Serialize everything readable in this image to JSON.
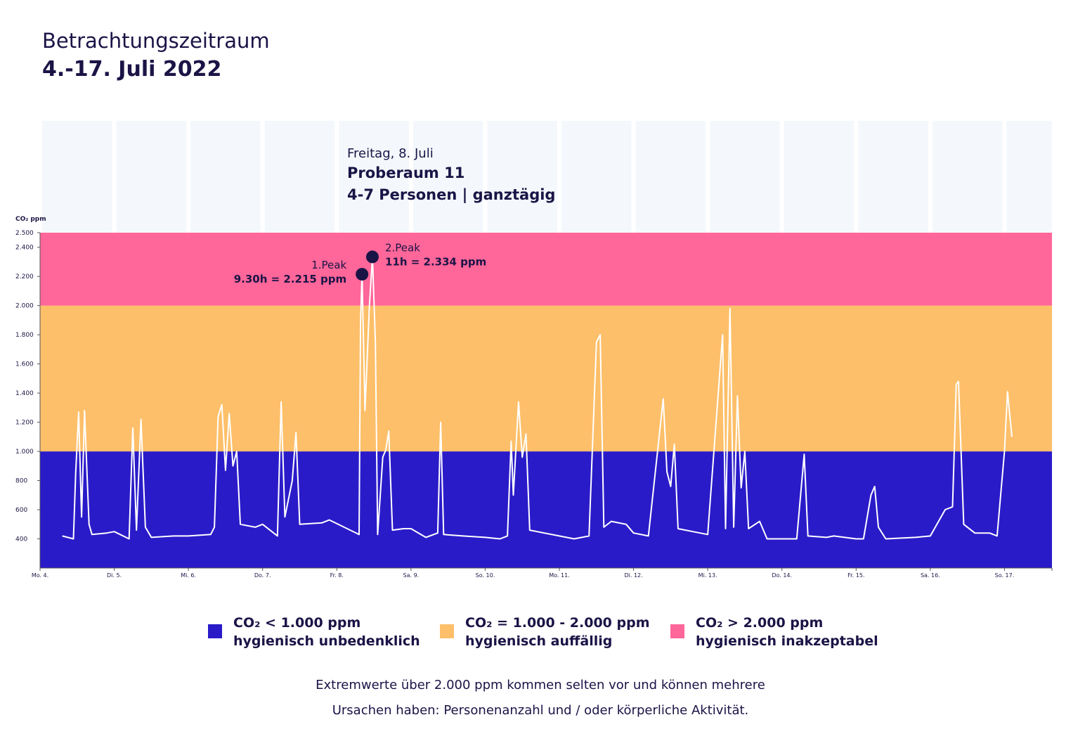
{
  "title": "Betrachtungszeitraum",
  "subtitle": "4.-17. Juli 2022",
  "chart_data": {
    "type": "line",
    "y_axis_label": "CO₂ ppm",
    "line_color": "#ffffff",
    "callout": {
      "date": "Freitag, 8. Juli",
      "room": "Proberaum 11",
      "info": "4-7 Personen | ganztägig"
    },
    "peaks": [
      {
        "label": "1.Peak",
        "text": "9.30h = 2.215 ppm",
        "x": 4.34,
        "y": 2215
      },
      {
        "label": "2.Peak",
        "text": "11h = 2.334 ppm",
        "x": 4.48,
        "y": 2334
      }
    ],
    "xlim": [
      0,
      13.64
    ],
    "xticks": [
      {
        "value": 0,
        "label": "Mo. 4."
      },
      {
        "value": 1,
        "label": "Di. 5."
      },
      {
        "value": 2,
        "label": "Mi. 6."
      },
      {
        "value": 3,
        "label": "Do. 7."
      },
      {
        "value": 4,
        "label": "Fr. 8."
      },
      {
        "value": 5,
        "label": "Sa. 9."
      },
      {
        "value": 6,
        "label": "So. 10."
      },
      {
        "value": 7,
        "label": "Mo. 11."
      },
      {
        "value": 8,
        "label": "Di. 12."
      },
      {
        "value": 9,
        "label": "Mi. 13."
      },
      {
        "value": 10,
        "label": "Do. 14."
      },
      {
        "value": 11,
        "label": "Fr. 15."
      },
      {
        "value": 12,
        "label": "Sa. 16."
      },
      {
        "value": 13,
        "label": "So. 17."
      }
    ],
    "ylim": [
      200,
      2500
    ],
    "yticks": [
      {
        "value": 400,
        "label": "400"
      },
      {
        "value": 600,
        "label": "600"
      },
      {
        "value": 800,
        "label": "800"
      },
      {
        "value": 1000,
        "label": "1.000"
      },
      {
        "value": 1200,
        "label": "1.200"
      },
      {
        "value": 1400,
        "label": "1.400"
      },
      {
        "value": 1600,
        "label": "1.600"
      },
      {
        "value": 1800,
        "label": "1.800"
      },
      {
        "value": 2000,
        "label": "2.000"
      },
      {
        "value": 2200,
        "label": "2.200"
      },
      {
        "value": 2400,
        "label": "2.400"
      },
      {
        "value": 2500,
        "label": "2.500"
      }
    ],
    "bands": [
      {
        "name": "CO₂ < 1.000 ppm",
        "desc": "hygienisch unbedenklich",
        "color": "#2a1bc9",
        "to": 1000
      },
      {
        "name": "CO₂ = 1.000 - 2.000 ppm",
        "desc": "hygienisch auffällig",
        "color": "#fdbf69",
        "from": 1000,
        "to": 2000
      },
      {
        "name": "CO₂ > 2.000 ppm",
        "desc": "hygienisch inakzeptabel",
        "color": "#ff6699",
        "from": 2000
      }
    ],
    "x": [
      0.3,
      0.45,
      0.48,
      0.52,
      0.56,
      0.6,
      0.66,
      0.7,
      0.9,
      1.0,
      1.2,
      1.25,
      1.3,
      1.36,
      1.42,
      1.5,
      1.8,
      2.0,
      2.3,
      2.35,
      2.4,
      2.45,
      2.5,
      2.55,
      2.6,
      2.65,
      2.7,
      2.9,
      3.0,
      3.2,
      3.25,
      3.3,
      3.4,
      3.45,
      3.5,
      3.8,
      3.9,
      4.3,
      4.32,
      4.34,
      4.38,
      4.44,
      4.48,
      4.52,
      4.55,
      4.62,
      4.66,
      4.7,
      4.75,
      4.9,
      5.0,
      5.2,
      5.36,
      5.4,
      5.44,
      5.7,
      6.0,
      6.2,
      6.3,
      6.35,
      6.38,
      6.45,
      6.5,
      6.55,
      6.6,
      7.0,
      7.2,
      7.4,
      7.5,
      7.55,
      7.6,
      7.7,
      7.9,
      8.0,
      8.2,
      8.4,
      8.45,
      8.5,
      8.55,
      8.6,
      8.8,
      9.0,
      9.2,
      9.24,
      9.3,
      9.35,
      9.4,
      9.45,
      9.5,
      9.55,
      9.7,
      9.8,
      10.0,
      10.2,
      10.3,
      10.35,
      10.6,
      10.7,
      11.0,
      11.1,
      11.2,
      11.25,
      11.3,
      11.4,
      11.8,
      12.0,
      12.2,
      12.3,
      12.35,
      12.38,
      12.45,
      12.6,
      12.8,
      12.9,
      13.0,
      13.04,
      13.1
    ],
    "values": [
      420,
      400,
      850,
      1270,
      550,
      1280,
      500,
      430,
      440,
      450,
      400,
      1160,
      460,
      1220,
      480,
      410,
      420,
      420,
      430,
      480,
      1240,
      1320,
      870,
      1260,
      900,
      1000,
      500,
      480,
      500,
      420,
      1340,
      550,
      800,
      1130,
      500,
      510,
      530,
      430,
      1900,
      2215,
      1280,
      2000,
      2334,
      1750,
      430,
      960,
      1010,
      1140,
      460,
      470,
      470,
      410,
      440,
      1200,
      430,
      420,
      410,
      400,
      420,
      1070,
      700,
      1340,
      960,
      1120,
      460,
      420,
      400,
      420,
      1750,
      1800,
      480,
      520,
      500,
      440,
      420,
      1360,
      860,
      760,
      1050,
      470,
      450,
      430,
      1800,
      470,
      1980,
      480,
      1380,
      750,
      1000,
      470,
      520,
      400,
      400,
      400,
      980,
      420,
      410,
      420,
      400,
      400,
      700,
      760,
      480,
      400,
      410,
      420,
      600,
      620,
      1460,
      1480,
      500,
      440,
      440,
      420,
      1000,
      1410,
      1100
    ]
  },
  "footnote": [
    "Extremwerte über 2.000 ppm kommen selten vor und können mehrere",
    "Ursachen haben: Personenanzahl und / oder körperliche Aktivität."
  ]
}
